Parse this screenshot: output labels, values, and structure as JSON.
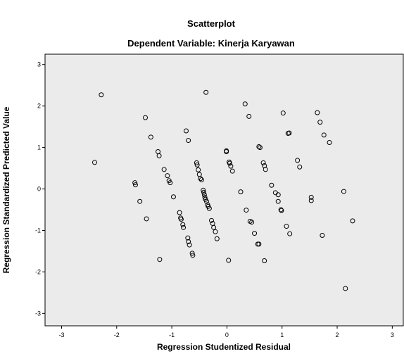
{
  "chart_data": {
    "type": "scatter",
    "title": "Scatterplot",
    "subtitle": "Dependent Variable: Kinerja Karyawan",
    "xlabel": "Regression Studentized Residual",
    "ylabel": "Regression Standardized Predicted Value",
    "xlim": [
      -3.3,
      3.2
    ],
    "ylim": [
      -3.3,
      3.25
    ],
    "x_ticks": [
      "-3",
      "-2",
      "-1",
      "0",
      "1",
      "2",
      "3"
    ],
    "y_ticks": [
      "-3",
      "-2",
      "-1",
      "0",
      "1",
      "2",
      "3"
    ],
    "grid": false,
    "background": "#ebebeb",
    "marker_color": "#000000",
    "points": [
      [
        -2.28,
        2.27
      ],
      [
        -2.4,
        0.64
      ],
      [
        -1.67,
        0.15
      ],
      [
        -1.66,
        0.1
      ],
      [
        -1.58,
        -0.3
      ],
      [
        -1.48,
        1.72
      ],
      [
        -1.46,
        -0.72
      ],
      [
        -1.38,
        1.25
      ],
      [
        -1.25,
        0.9
      ],
      [
        -1.23,
        0.8
      ],
      [
        -1.22,
        -1.7
      ],
      [
        -1.14,
        0.47
      ],
      [
        -1.08,
        0.32
      ],
      [
        -1.05,
        0.2
      ],
      [
        -1.03,
        0.15
      ],
      [
        -0.97,
        -0.19
      ],
      [
        -0.86,
        -0.57
      ],
      [
        -0.84,
        -0.7
      ],
      [
        -0.83,
        -0.73
      ],
      [
        -0.8,
        -0.86
      ],
      [
        -0.79,
        -0.93
      ],
      [
        -0.74,
        1.4
      ],
      [
        -0.71,
        -1.18
      ],
      [
        -0.7,
        1.17
      ],
      [
        -0.7,
        -1.27
      ],
      [
        -0.68,
        -1.35
      ],
      [
        -0.63,
        -1.55
      ],
      [
        -0.62,
        -1.6
      ],
      [
        -0.55,
        0.63
      ],
      [
        -0.54,
        0.58
      ],
      [
        -0.52,
        0.46
      ],
      [
        -0.5,
        0.35
      ],
      [
        -0.48,
        0.25
      ],
      [
        -0.46,
        0.22
      ],
      [
        -0.43,
        -0.03
      ],
      [
        -0.42,
        -0.08
      ],
      [
        -0.41,
        -0.14
      ],
      [
        -0.4,
        -0.2
      ],
      [
        -0.39,
        -0.25
      ],
      [
        -0.37,
        -0.3
      ],
      [
        -0.35,
        -0.38
      ],
      [
        -0.34,
        -0.42
      ],
      [
        -0.32,
        -0.47
      ],
      [
        -0.38,
        2.33
      ],
      [
        -0.28,
        -0.76
      ],
      [
        -0.26,
        -0.83
      ],
      [
        -0.24,
        -0.93
      ],
      [
        -0.21,
        -1.03
      ],
      [
        -0.18,
        -1.2
      ],
      [
        -0.01,
        0.92
      ],
      [
        -0.01,
        0.9
      ],
      [
        0.04,
        0.65
      ],
      [
        0.05,
        0.62
      ],
      [
        0.07,
        0.55
      ],
      [
        0.1,
        0.43
      ],
      [
        0.03,
        -1.72
      ],
      [
        0.25,
        -0.07
      ],
      [
        0.33,
        2.05
      ],
      [
        0.35,
        -0.51
      ],
      [
        0.4,
        1.75
      ],
      [
        0.42,
        -0.78
      ],
      [
        0.45,
        -0.8
      ],
      [
        0.5,
        -1.07
      ],
      [
        0.56,
        -1.33
      ],
      [
        0.58,
        -1.33
      ],
      [
        0.58,
        1.02
      ],
      [
        0.6,
        1.0
      ],
      [
        0.66,
        0.63
      ],
      [
        0.68,
        0.56
      ],
      [
        0.7,
        0.47
      ],
      [
        0.68,
        -1.73
      ],
      [
        0.81,
        0.09
      ],
      [
        0.88,
        -0.09
      ],
      [
        0.93,
        -0.14
      ],
      [
        0.93,
        -0.3
      ],
      [
        0.98,
        -0.5
      ],
      [
        0.99,
        -0.52
      ],
      [
        1.02,
        1.83
      ],
      [
        1.08,
        -0.9
      ],
      [
        1.11,
        1.34
      ],
      [
        1.13,
        1.35
      ],
      [
        1.14,
        -1.08
      ],
      [
        1.28,
        0.69
      ],
      [
        1.32,
        0.53
      ],
      [
        1.53,
        -0.2
      ],
      [
        1.53,
        -0.28
      ],
      [
        1.64,
        1.84
      ],
      [
        1.69,
        1.61
      ],
      [
        1.73,
        -1.12
      ],
      [
        1.76,
        1.3
      ],
      [
        1.86,
        1.12
      ],
      [
        2.12,
        -0.06
      ],
      [
        2.15,
        -2.4
      ],
      [
        2.28,
        -0.77
      ]
    ]
  }
}
